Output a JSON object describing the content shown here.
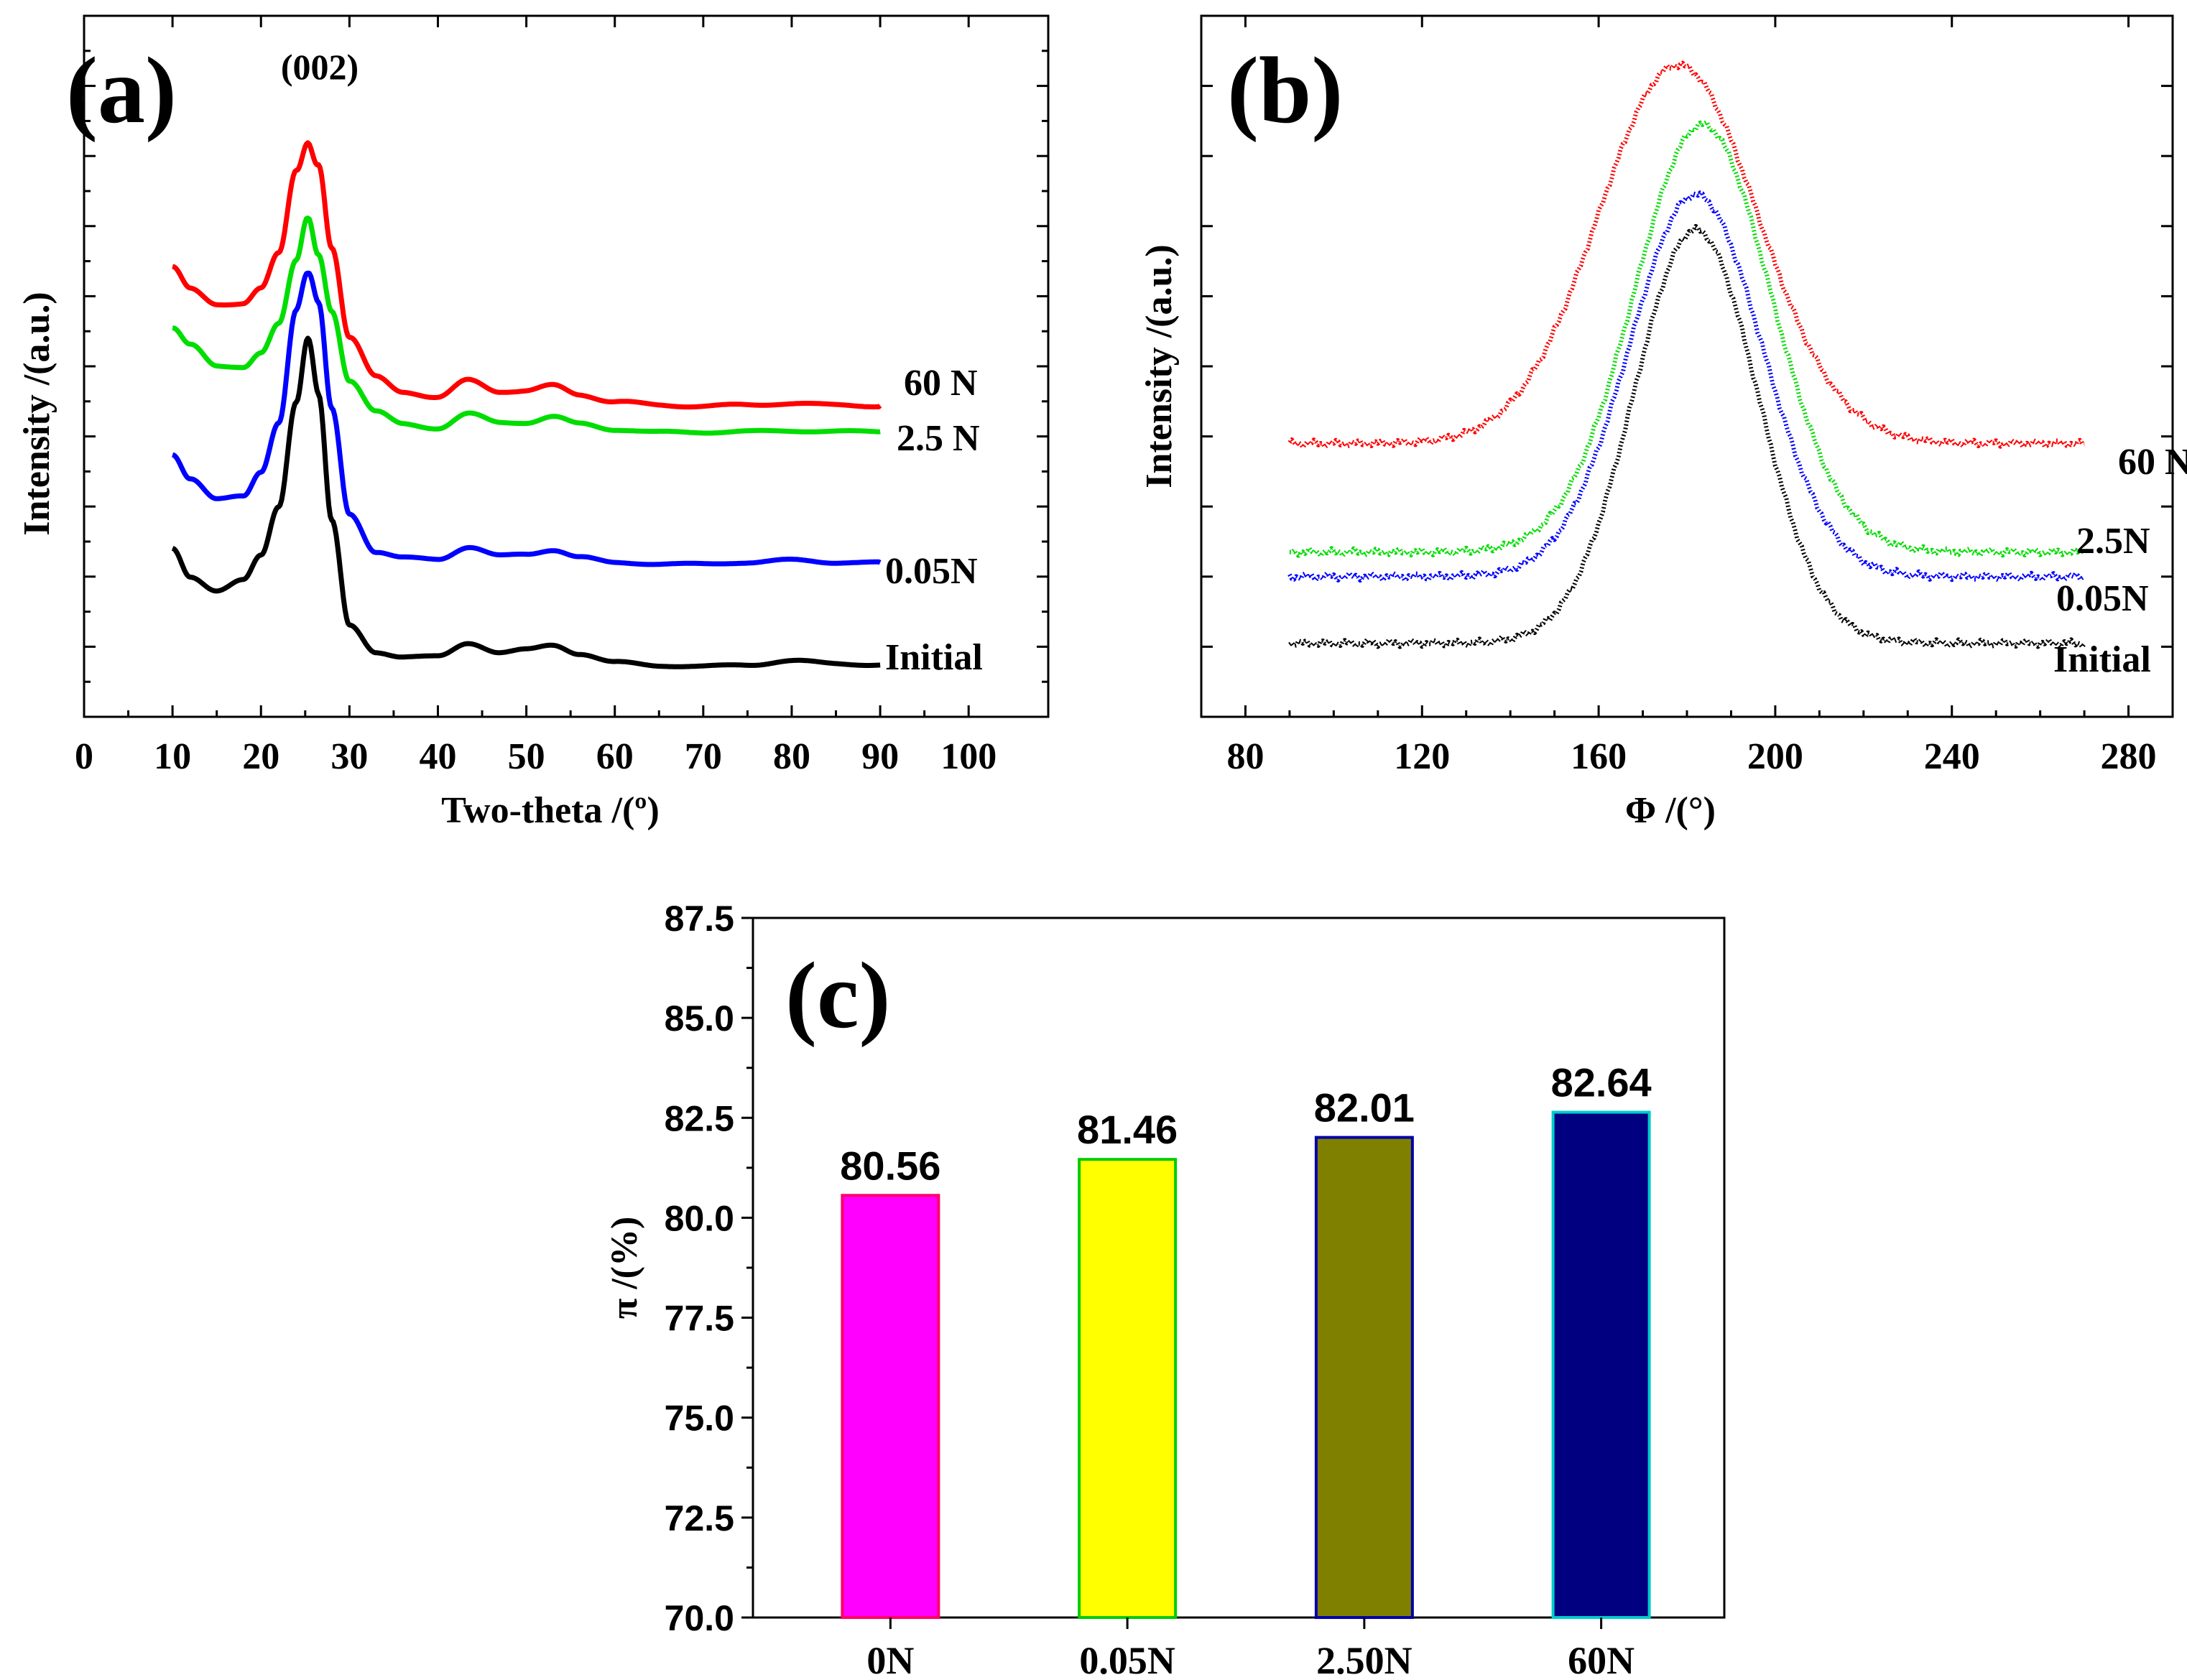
{
  "chart_data": [
    {
      "id": "a",
      "type": "line",
      "panel_label": "(a)",
      "annotation": "(002)",
      "xlabel": "Two-theta /(º)",
      "ylabel": "Intensity /(a.u.)",
      "xlim": [
        0,
        109
      ],
      "ylim": [
        0,
        10
      ],
      "x_ticks": [
        0,
        10,
        20,
        30,
        40,
        50,
        60,
        70,
        80,
        90,
        100
      ],
      "x_tick_labels": [
        "0",
        "10",
        "20",
        "30",
        "40",
        "50",
        "60",
        "70",
        "80",
        "90",
        "100"
      ],
      "series": [
        {
          "name": "Initial",
          "color": "#000000",
          "x": [
            10,
            12,
            15,
            18,
            20,
            22,
            24,
            25.3,
            26.5,
            28,
            30,
            33,
            36,
            40,
            43.5,
            47,
            50,
            53,
            56,
            60,
            65,
            70,
            75,
            80,
            85,
            90
          ],
          "y": [
            2.4,
            2.0,
            1.8,
            1.95,
            2.3,
            3.0,
            4.5,
            5.4,
            4.6,
            2.8,
            1.3,
            0.92,
            0.86,
            0.86,
            1.05,
            0.92,
            0.96,
            1.02,
            0.9,
            0.78,
            0.73,
            0.72,
            0.74,
            0.8,
            0.76,
            0.74
          ]
        },
        {
          "name": "0.05N",
          "color": "#0000ff",
          "x": [
            10,
            12,
            15,
            18,
            20,
            22,
            24,
            25.3,
            26.5,
            28,
            30,
            33,
            36,
            40,
            43.5,
            47,
            50,
            53,
            56,
            60,
            65,
            70,
            75,
            80,
            85,
            90
          ],
          "y": [
            3.75,
            3.4,
            3.1,
            3.15,
            3.5,
            4.2,
            5.8,
            6.3,
            5.9,
            4.4,
            2.9,
            2.35,
            2.27,
            2.25,
            2.42,
            2.3,
            2.32,
            2.38,
            2.28,
            2.2,
            2.18,
            2.18,
            2.2,
            2.24,
            2.2,
            2.2
          ]
        },
        {
          "name": "2.5 N",
          "color": "#00dd00",
          "x": [
            10,
            12,
            15,
            18,
            20,
            22,
            24,
            25.3,
            26.5,
            28,
            30,
            33,
            36,
            40,
            43.5,
            47,
            50,
            53,
            56,
            60,
            65,
            70,
            75,
            80,
            85,
            90
          ],
          "y": [
            5.55,
            5.3,
            5.0,
            5.0,
            5.2,
            5.6,
            6.5,
            7.1,
            6.6,
            5.8,
            4.8,
            4.35,
            4.18,
            4.12,
            4.32,
            4.2,
            4.2,
            4.28,
            4.18,
            4.1,
            4.06,
            4.06,
            4.07,
            4.08,
            4.07,
            4.07
          ]
        },
        {
          "name": "60 N",
          "color": "#ff0000",
          "x": [
            10,
            12,
            15,
            18,
            20,
            22,
            24,
            25.3,
            26.5,
            28,
            30,
            33,
            36,
            40,
            43.5,
            47,
            50,
            53,
            56,
            60,
            65,
            70,
            75,
            80,
            85,
            90
          ],
          "y": [
            6.4,
            6.1,
            5.9,
            5.9,
            6.1,
            6.6,
            7.8,
            8.2,
            7.9,
            6.7,
            5.4,
            4.85,
            4.65,
            4.55,
            4.8,
            4.65,
            4.65,
            4.72,
            4.6,
            4.5,
            4.44,
            4.44,
            4.44,
            4.48,
            4.44,
            4.44
          ]
        }
      ],
      "legend": [
        "60 N",
        "2.5 N",
        "0.05N",
        "Initial"
      ]
    },
    {
      "id": "b",
      "type": "line",
      "panel_label": "(b)",
      "xlabel": "Φ /(°)",
      "ylabel": "Intensity /(a.u.)",
      "xlim": [
        70,
        290
      ],
      "ylim": [
        0,
        10
      ],
      "x_ticks": [
        80,
        120,
        160,
        200,
        240,
        280
      ],
      "x_tick_labels": [
        "80",
        "120",
        "160",
        "200",
        "240",
        "280"
      ],
      "series": [
        {
          "name": "Initial",
          "color": "#000000",
          "center": 182,
          "width": 14,
          "baseline": 1.05,
          "amplitude": 5.9,
          "x_range": [
            90,
            270
          ]
        },
        {
          "name": "0.05N",
          "color": "#0000ff",
          "center": 182,
          "width": 15,
          "baseline": 2.0,
          "amplitude": 5.45,
          "x_range": [
            90,
            270
          ]
        },
        {
          "name": "2.5N",
          "color": "#00dd00",
          "center": 183.5,
          "width": 15.5,
          "baseline": 2.35,
          "amplitude": 6.1,
          "x_range": [
            90,
            270
          ]
        },
        {
          "name": "60 N",
          "color": "#ff0000",
          "center": 178,
          "width": 18,
          "baseline": 3.9,
          "amplitude": 5.4,
          "x_range": [
            90,
            270
          ]
        }
      ],
      "legend": [
        "60 N",
        "2.5N",
        "0.05N",
        "Initial"
      ]
    },
    {
      "id": "c",
      "type": "bar",
      "panel_label": "(c)",
      "ylabel": "π /(%)",
      "ylim": [
        70,
        87.5
      ],
      "y_ticks": [
        70.0,
        72.5,
        75.0,
        77.5,
        80.0,
        82.5,
        85.0,
        87.5
      ],
      "y_tick_labels": [
        "70.0",
        "72.5",
        "75.0",
        "77.5",
        "80.0",
        "82.5",
        "85.0",
        "87.5"
      ],
      "categories": [
        "0N",
        "0.05N",
        "2.50N",
        "60N"
      ],
      "values": [
        80.56,
        81.46,
        82.01,
        82.64
      ],
      "value_labels": [
        "80.56",
        "81.46",
        "82.01",
        "82.64"
      ],
      "fill_colors": [
        "#ff00ff",
        "#ffff00",
        "#808000",
        "#000080"
      ],
      "edge_colors": [
        "#ff0066",
        "#00cc00",
        "#0000aa",
        "#00cccc"
      ]
    }
  ]
}
